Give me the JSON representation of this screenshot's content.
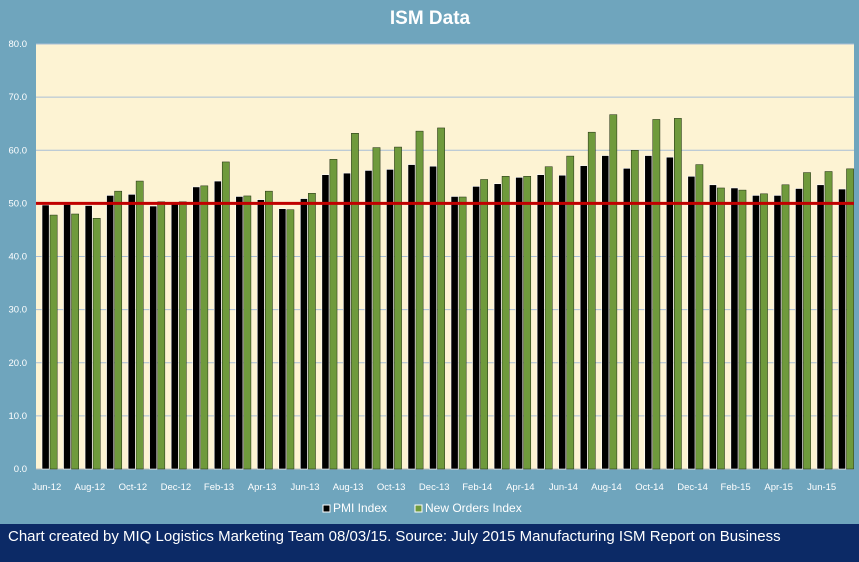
{
  "chart_data": {
    "type": "bar",
    "title": "ISM Data",
    "xlabel": "",
    "ylabel": "",
    "ylim": [
      0,
      80
    ],
    "yticks": [
      "0.0",
      "10.0",
      "20.0",
      "30.0",
      "40.0",
      "50.0",
      "60.0",
      "70.0",
      "80.0"
    ],
    "grid": true,
    "legend": "bottom",
    "categories": [
      "Jun-12",
      "Jul-12",
      "Aug-12",
      "Sep-12",
      "Oct-12",
      "Nov-12",
      "Dec-12",
      "Jan-13",
      "Feb-13",
      "Mar-13",
      "Apr-13",
      "May-13",
      "Jun-13",
      "Jul-13",
      "Aug-13",
      "Sep-13",
      "Oct-13",
      "Nov-13",
      "Dec-13",
      "Jan-14",
      "Feb-14",
      "Mar-14",
      "Apr-14",
      "May-14",
      "Jun-14",
      "Jul-14",
      "Aug-14",
      "Sep-14",
      "Oct-14",
      "Nov-14",
      "Dec-14",
      "Jan-15",
      "Feb-15",
      "Mar-15",
      "Apr-15",
      "May-15",
      "Jun-15",
      "Jul-15"
    ],
    "tick_labels": [
      "Jun-12",
      "Aug-12",
      "Oct-12",
      "Dec-12",
      "Feb-13",
      "Apr-13",
      "Jun-13",
      "Aug-13",
      "Oct-13",
      "Dec-13",
      "Feb-14",
      "Apr-14",
      "Jun-14",
      "Aug-14",
      "Oct-14",
      "Dec-14",
      "Feb-15",
      "Apr-15",
      "Jun-15"
    ],
    "series": [
      {
        "name": "PMI Index",
        "color": "#000000",
        "values": [
          49.7,
          49.8,
          49.6,
          51.5,
          51.7,
          49.5,
          50.2,
          53.1,
          54.2,
          51.3,
          50.7,
          49.0,
          50.9,
          55.4,
          55.7,
          56.2,
          56.4,
          57.3,
          57.0,
          51.3,
          53.2,
          53.7,
          54.9,
          55.4,
          55.3,
          57.1,
          59.0,
          56.6,
          59.0,
          58.7,
          55.1,
          53.5,
          52.9,
          51.5,
          51.5,
          52.8,
          53.5,
          52.7
        ]
      },
      {
        "name": "New Orders Index",
        "color": "#6f9a3c",
        "values": [
          47.8,
          48.0,
          47.2,
          52.3,
          54.2,
          50.3,
          50.3,
          53.3,
          57.8,
          51.4,
          52.3,
          48.8,
          51.9,
          58.3,
          63.2,
          60.5,
          60.6,
          63.6,
          64.2,
          51.2,
          54.5,
          55.1,
          55.1,
          56.9,
          58.9,
          63.4,
          66.7,
          60.0,
          65.8,
          66.0,
          57.3,
          52.9,
          52.5,
          51.8,
          53.5,
          55.8,
          56.0,
          56.5
        ]
      }
    ],
    "reference_line": {
      "value": 50,
      "color": "#c00000"
    },
    "footer": "Chart created by MIQ Logistics Marketing Team 08/03/15. Source: July 2015 Manufacturing ISM Report on Business"
  },
  "colors": {
    "background": "#6fa5bd",
    "plot_background": "#fdf3d3",
    "footer_background": "#0c2a66"
  }
}
